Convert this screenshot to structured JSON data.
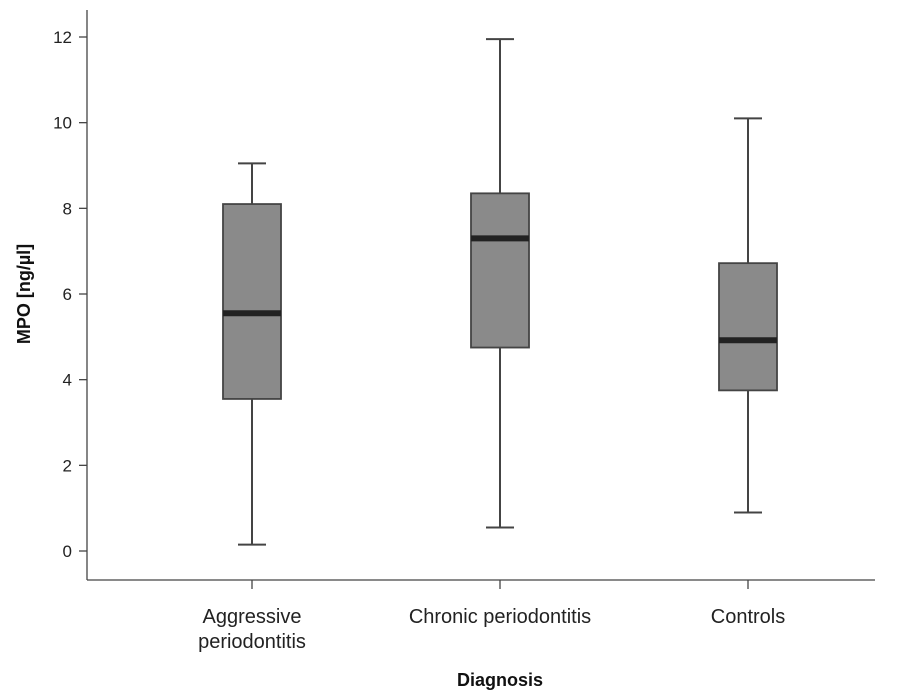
{
  "chart_data": {
    "type": "box",
    "xlabel": "Diagnosis",
    "ylabel": "MPO [ng/µl]",
    "ylim": [
      -0.7,
      12.7
    ],
    "yticks": [
      0,
      2,
      4,
      6,
      8,
      10,
      12
    ],
    "grid": false,
    "categories": [
      [
        "Aggressive",
        "periodontitis"
      ],
      [
        "Chronic periodontitis"
      ],
      [
        "Controls"
      ]
    ],
    "boxes": [
      {
        "whisker_low": 0.15,
        "q1": 3.55,
        "median": 5.55,
        "q3": 8.1,
        "whisker_high": 9.05
      },
      {
        "whisker_low": 0.55,
        "q1": 4.75,
        "median": 7.3,
        "q3": 8.35,
        "whisker_high": 11.95
      },
      {
        "whisker_low": 0.9,
        "q1": 3.75,
        "median": 4.92,
        "q3": 6.72,
        "whisker_high": 10.1
      }
    ],
    "colors": {
      "box_fill": "#8a8a8a",
      "median": "#222222",
      "line": "#444444"
    }
  }
}
